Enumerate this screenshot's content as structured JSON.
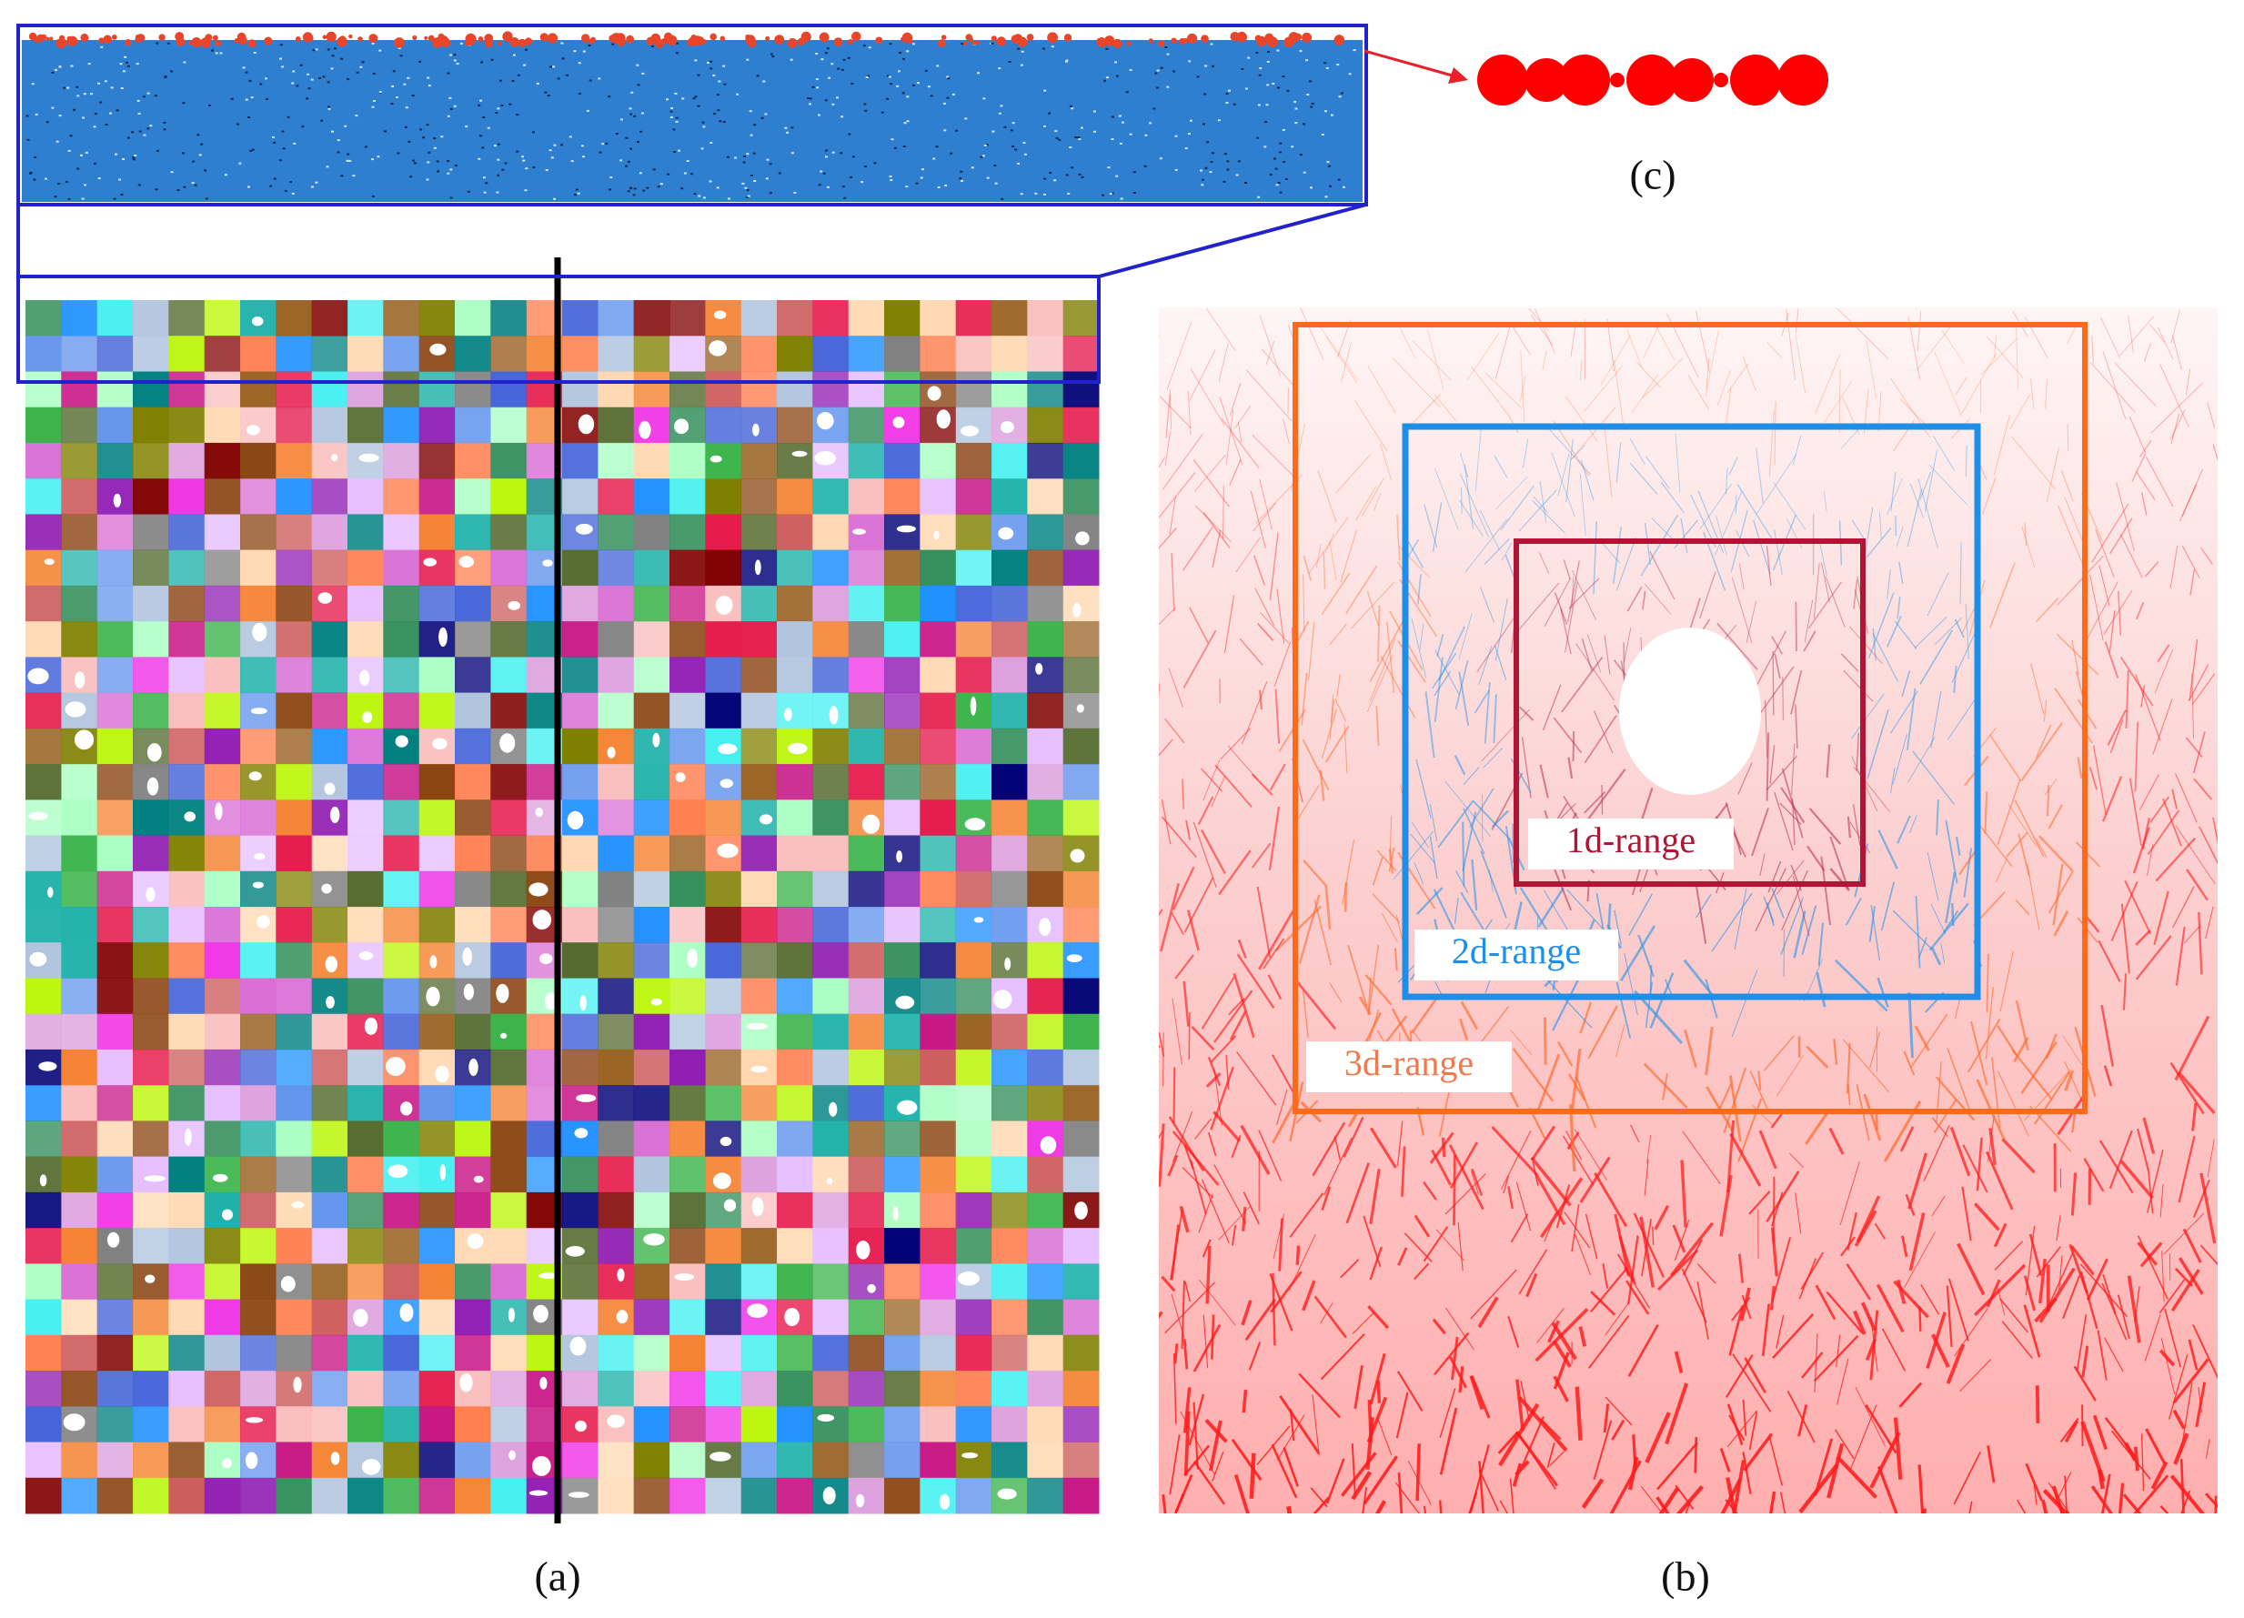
{
  "panels": {
    "a": {
      "label": "(a)"
    },
    "b": {
      "label": "(b)"
    },
    "c": {
      "label": "(c)"
    }
  },
  "ranges": {
    "first": "1d-range",
    "second": "2d-range",
    "third": "3d-range"
  }
}
